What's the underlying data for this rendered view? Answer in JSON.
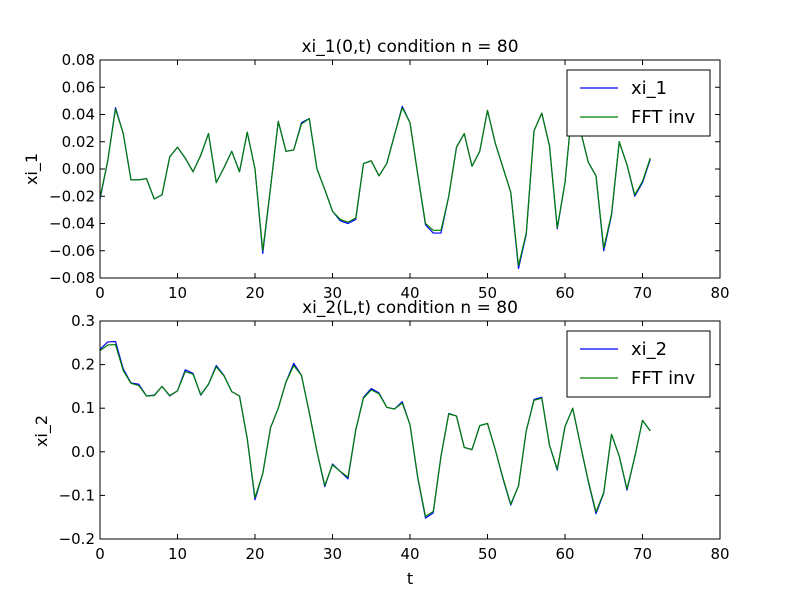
{
  "chart_data": [
    {
      "type": "line",
      "title": "xi_1(0,t) condition n = 80",
      "xlabel": "",
      "ylabel": "xi_1",
      "xlim": [
        0,
        80
      ],
      "ylim": [
        -0.08,
        0.08
      ],
      "xticks": [
        0,
        10,
        20,
        30,
        40,
        50,
        60,
        70,
        80
      ],
      "yticks": [
        -0.08,
        -0.06,
        -0.04,
        -0.02,
        0.0,
        0.02,
        0.04,
        0.06,
        0.08
      ],
      "ytick_labels": [
        "−0.08",
        "−0.06",
        "−0.04",
        "−0.02",
        "0.00",
        "0.02",
        "0.04",
        "0.06",
        "0.08"
      ],
      "grid": false,
      "legend_position": "top-right",
      "x": [
        0,
        1,
        2,
        3,
        4,
        5,
        6,
        7,
        8,
        9,
        10,
        11,
        12,
        13,
        14,
        15,
        16,
        17,
        18,
        19,
        20,
        21,
        22,
        23,
        24,
        25,
        26,
        27,
        28,
        29,
        30,
        31,
        32,
        33,
        34,
        35,
        36,
        37,
        38,
        39,
        40,
        41,
        42,
        43,
        44,
        45,
        46,
        47,
        48,
        49,
        50,
        51,
        52,
        53,
        54,
        55,
        56,
        57,
        58,
        59,
        60,
        61,
        62,
        63,
        64,
        65,
        66,
        67,
        68,
        69,
        70,
        71
      ],
      "series": [
        {
          "name": "xi_1",
          "color": "#0000ff",
          "values": [
            -0.022,
            0.006,
            0.045,
            0.026,
            -0.008,
            -0.008,
            -0.007,
            -0.022,
            -0.019,
            0.009,
            0.016,
            0.008,
            -0.002,
            0.01,
            0.026,
            -0.01,
            0.001,
            0.013,
            -0.002,
            0.027,
            0.0,
            -0.062,
            -0.014,
            0.035,
            0.013,
            0.014,
            0.034,
            0.037,
            0.0,
            -0.015,
            -0.031,
            -0.038,
            -0.04,
            -0.037,
            0.004,
            0.006,
            -0.005,
            0.004,
            0.025,
            0.046,
            0.034,
            -0.004,
            -0.041,
            -0.047,
            -0.047,
            -0.02,
            0.016,
            0.026,
            0.002,
            0.013,
            0.043,
            0.019,
            0.001,
            -0.017,
            -0.073,
            -0.048,
            0.028,
            0.041,
            0.017,
            -0.044,
            -0.01,
            0.05,
            0.028,
            0.005,
            -0.005,
            -0.06,
            -0.034,
            0.02,
            0.003,
            -0.02,
            -0.01,
            0.007
          ]
        },
        {
          "name": "FFT inv",
          "color": "#008000",
          "values": [
            -0.021,
            0.006,
            0.044,
            0.026,
            -0.008,
            -0.008,
            -0.007,
            -0.022,
            -0.019,
            0.009,
            0.016,
            0.008,
            -0.002,
            0.01,
            0.026,
            -0.01,
            0.001,
            0.013,
            -0.002,
            0.027,
            0.0,
            -0.06,
            -0.014,
            0.035,
            0.013,
            0.014,
            0.033,
            0.037,
            0.0,
            -0.015,
            -0.031,
            -0.037,
            -0.039,
            -0.036,
            0.004,
            0.006,
            -0.005,
            0.004,
            0.025,
            0.045,
            0.034,
            -0.004,
            -0.04,
            -0.045,
            -0.045,
            -0.02,
            0.016,
            0.026,
            0.002,
            0.013,
            0.043,
            0.019,
            0.001,
            -0.017,
            -0.071,
            -0.047,
            0.028,
            0.041,
            0.017,
            -0.043,
            -0.01,
            0.05,
            0.028,
            0.005,
            -0.005,
            -0.058,
            -0.033,
            0.02,
            0.003,
            -0.019,
            -0.009,
            0.008
          ]
        }
      ]
    },
    {
      "type": "line",
      "title": "xi_2(L,t) condition n = 80",
      "xlabel": "t",
      "ylabel": "xi_2",
      "xlim": [
        0,
        80
      ],
      "ylim": [
        -0.2,
        0.3
      ],
      "xticks": [
        0,
        10,
        20,
        30,
        40,
        50,
        60,
        70,
        80
      ],
      "yticks": [
        -0.2,
        -0.1,
        0.0,
        0.1,
        0.2,
        0.3
      ],
      "ytick_labels": [
        "−0.2",
        "−0.1",
        "0.0",
        "0.1",
        "0.2",
        "0.3"
      ],
      "grid": false,
      "legend_position": "top-right",
      "x": [
        0,
        1,
        2,
        3,
        4,
        5,
        6,
        7,
        8,
        9,
        10,
        11,
        12,
        13,
        14,
        15,
        16,
        17,
        18,
        19,
        20,
        21,
        22,
        23,
        24,
        25,
        26,
        27,
        28,
        29,
        30,
        31,
        32,
        33,
        34,
        35,
        36,
        37,
        38,
        39,
        40,
        41,
        42,
        43,
        44,
        45,
        46,
        47,
        48,
        49,
        50,
        51,
        52,
        53,
        54,
        55,
        56,
        57,
        58,
        59,
        60,
        61,
        62,
        63,
        64,
        65,
        66,
        67,
        68,
        69,
        70,
        71
      ],
      "series": [
        {
          "name": "xi_2",
          "color": "#0000ff",
          "values": [
            0.235,
            0.252,
            0.253,
            0.19,
            0.158,
            0.155,
            0.128,
            0.13,
            0.15,
            0.128,
            0.14,
            0.188,
            0.18,
            0.13,
            0.155,
            0.198,
            0.175,
            0.138,
            0.128,
            0.03,
            -0.11,
            -0.05,
            0.055,
            0.1,
            0.16,
            0.203,
            0.175,
            0.09,
            0.0,
            -0.08,
            -0.028,
            -0.045,
            -0.062,
            0.05,
            0.125,
            0.145,
            0.135,
            0.102,
            0.098,
            0.115,
            0.062,
            -0.06,
            -0.152,
            -0.14,
            -0.01,
            0.088,
            0.082,
            0.01,
            0.005,
            0.06,
            0.065,
            0.005,
            -0.062,
            -0.122,
            -0.078,
            0.048,
            0.12,
            0.125,
            0.015,
            -0.042,
            0.058,
            0.1,
            0.015,
            -0.068,
            -0.142,
            -0.095,
            0.04,
            -0.01,
            -0.088,
            -0.012,
            0.072,
            0.048
          ]
        },
        {
          "name": "FFT inv",
          "color": "#008000",
          "values": [
            0.232,
            0.245,
            0.246,
            0.186,
            0.157,
            0.152,
            0.128,
            0.129,
            0.15,
            0.129,
            0.14,
            0.184,
            0.178,
            0.131,
            0.155,
            0.195,
            0.174,
            0.138,
            0.128,
            0.03,
            -0.105,
            -0.05,
            0.055,
            0.1,
            0.16,
            0.198,
            0.175,
            0.09,
            0.0,
            -0.077,
            -0.03,
            -0.045,
            -0.058,
            0.05,
            0.123,
            0.142,
            0.133,
            0.102,
            0.098,
            0.112,
            0.062,
            -0.058,
            -0.148,
            -0.137,
            -0.01,
            0.087,
            0.082,
            0.01,
            0.005,
            0.06,
            0.065,
            0.005,
            -0.06,
            -0.12,
            -0.078,
            0.048,
            0.118,
            0.123,
            0.015,
            -0.04,
            0.058,
            0.1,
            0.015,
            -0.066,
            -0.138,
            -0.093,
            0.04,
            -0.01,
            -0.085,
            -0.012,
            0.072,
            0.048
          ]
        }
      ]
    }
  ]
}
